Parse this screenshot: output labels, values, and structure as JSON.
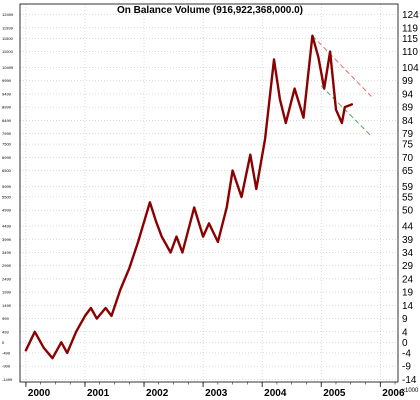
{
  "chart_data": {
    "type": "line",
    "title": "On Balance Volume (916,922,368,000.0)",
    "xlabel": "",
    "ylabel": "",
    "x_tick_labels": [
      "2000",
      "2001",
      "2002",
      "2003",
      "2004",
      "2005",
      "2006"
    ],
    "x_range": [
      1999.9,
      2006.3
    ],
    "y_right_range": [
      -15,
      128
    ],
    "y_right_ticks": [
      "124",
      "119",
      "115",
      "110",
      "104",
      "99",
      "94",
      "89",
      "84",
      "79",
      "75",
      "70",
      "65",
      "59",
      "55",
      "50",
      "44",
      "39",
      "34",
      "29",
      "24",
      "19",
      "14",
      "9",
      "4",
      "0",
      "-4",
      "-9",
      "-14"
    ],
    "y_left_ticks": [
      "12499",
      "11999",
      "11500",
      "11000",
      "10499",
      "9999",
      "9499",
      "8999",
      "8499",
      "7999",
      "7500",
      "6999",
      "6500",
      "5999",
      "5500",
      "4999",
      "4499",
      "3999",
      "3499",
      "2999",
      "2499",
      "1999",
      "1499",
      "999",
      "499",
      "0",
      "-499",
      "-999",
      "-1499"
    ],
    "unit_label": "x1000",
    "grid": true,
    "series": [
      {
        "color": "#8b0000",
        "x": [
          2000.0,
          2000.15,
          2000.3,
          2000.45,
          2000.6,
          2000.7,
          2000.85,
          2001.0,
          2001.1,
          2001.2,
          2001.35,
          2001.45,
          2001.6,
          2001.75,
          2001.9,
          2002.1,
          2002.2,
          2002.3,
          2002.45,
          2002.55,
          2002.65,
          2002.85,
          2003.0,
          2003.1,
          2003.25,
          2003.4,
          2003.5,
          2003.65,
          2003.8,
          2003.9,
          2004.05,
          2004.2,
          2004.3,
          2004.4,
          2004.55,
          2004.7,
          2004.85,
          2004.95,
          2005.05,
          2005.15,
          2005.25,
          2005.35,
          2005.4
        ],
        "y": [
          -3,
          4,
          -2,
          -6,
          0,
          -4,
          4,
          10,
          13,
          9,
          13,
          10,
          20,
          28,
          38,
          53,
          46,
          40,
          34,
          40,
          34,
          51,
          40,
          45,
          38,
          51,
          65,
          55,
          71,
          58,
          77,
          107,
          92,
          83,
          96,
          85,
          116,
          108,
          96,
          110,
          88,
          83,
          89
        ],
        "extra_x": [
          2005.52
        ],
        "extra_y": [
          90
        ]
      }
    ],
    "trendlines": [
      {
        "color": "#e07070",
        "dash": true,
        "x": [
          2004.85,
          2005.85
        ],
        "y": [
          116,
          93
        ]
      },
      {
        "color": "#55aa55",
        "dash": true,
        "x": [
          2005.0,
          2005.85
        ],
        "y": [
          97,
          78
        ]
      }
    ]
  }
}
